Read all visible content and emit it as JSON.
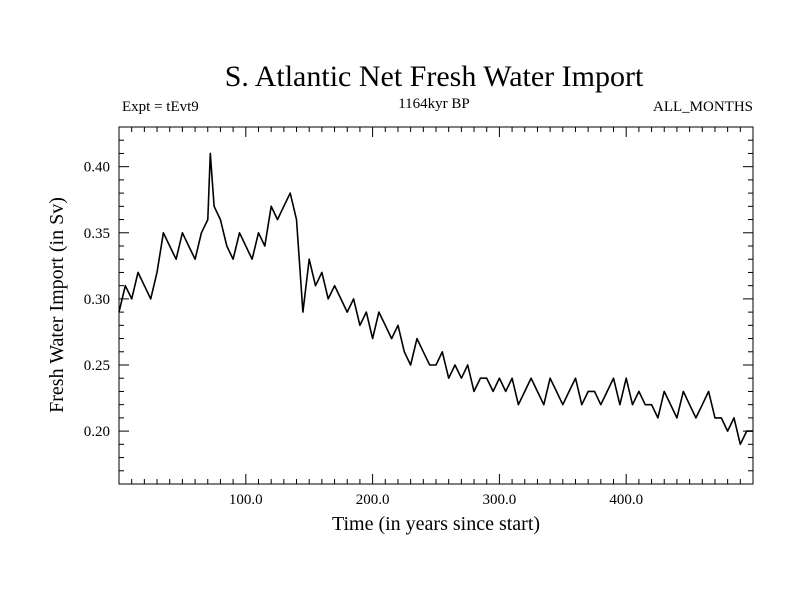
{
  "chart_data": {
    "type": "line",
    "title": "S. Atlantic Net Fresh Water Import",
    "subtitle": "1164kyr BP",
    "left_label": "Expt = tEvt9",
    "right_label": "ALL_MONTHS",
    "xlabel": "Time (in years since start)",
    "ylabel": "Fresh Water Import (in Sv)",
    "xlim": [
      0,
      500
    ],
    "ylim": [
      0.16,
      0.43
    ],
    "x_ticks": [
      100,
      200,
      300,
      400
    ],
    "x_tick_labels": [
      "100.0",
      "200.0",
      "300.0",
      "400.0"
    ],
    "y_ticks": [
      0.2,
      0.25,
      0.3,
      0.35,
      0.4
    ],
    "y_tick_labels": [
      "0.20",
      "0.25",
      "0.30",
      "0.35",
      "0.40"
    ],
    "series": [
      {
        "name": "Fresh Water Import",
        "x": [
          0,
          5,
          10,
          15,
          20,
          25,
          30,
          35,
          40,
          45,
          50,
          55,
          60,
          65,
          70,
          72,
          75,
          80,
          85,
          90,
          95,
          100,
          105,
          110,
          115,
          120,
          125,
          130,
          135,
          140,
          145,
          150,
          155,
          160,
          165,
          170,
          175,
          180,
          185,
          190,
          195,
          200,
          205,
          210,
          215,
          220,
          225,
          230,
          235,
          240,
          245,
          250,
          255,
          260,
          265,
          270,
          275,
          280,
          285,
          290,
          295,
          300,
          305,
          310,
          315,
          320,
          325,
          330,
          335,
          340,
          345,
          350,
          355,
          360,
          365,
          370,
          375,
          380,
          385,
          390,
          395,
          400,
          405,
          410,
          415,
          420,
          425,
          430,
          435,
          440,
          445,
          450,
          455,
          460,
          465,
          470,
          475,
          480,
          485,
          490,
          495,
          500
        ],
        "values": [
          0.29,
          0.31,
          0.3,
          0.32,
          0.31,
          0.3,
          0.32,
          0.35,
          0.34,
          0.33,
          0.35,
          0.34,
          0.33,
          0.35,
          0.36,
          0.41,
          0.37,
          0.36,
          0.34,
          0.33,
          0.35,
          0.34,
          0.33,
          0.35,
          0.34,
          0.37,
          0.36,
          0.37,
          0.38,
          0.36,
          0.29,
          0.33,
          0.31,
          0.32,
          0.3,
          0.31,
          0.3,
          0.29,
          0.3,
          0.28,
          0.29,
          0.27,
          0.29,
          0.28,
          0.27,
          0.28,
          0.26,
          0.25,
          0.27,
          0.26,
          0.25,
          0.25,
          0.26,
          0.24,
          0.25,
          0.24,
          0.25,
          0.23,
          0.24,
          0.24,
          0.23,
          0.24,
          0.23,
          0.24,
          0.22,
          0.23,
          0.24,
          0.23,
          0.22,
          0.24,
          0.23,
          0.22,
          0.23,
          0.24,
          0.22,
          0.23,
          0.23,
          0.22,
          0.23,
          0.24,
          0.22,
          0.24,
          0.22,
          0.23,
          0.22,
          0.22,
          0.21,
          0.23,
          0.22,
          0.21,
          0.23,
          0.22,
          0.21,
          0.22,
          0.23,
          0.21,
          0.21,
          0.2,
          0.21,
          0.19,
          0.2,
          0.2
        ]
      }
    ]
  }
}
